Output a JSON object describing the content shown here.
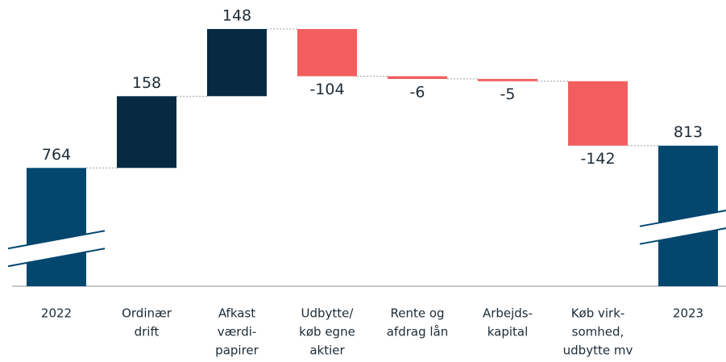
{
  "chart_data": {
    "type": "waterfall",
    "categories": [
      [
        "2022"
      ],
      [
        "Ordinær",
        "drift"
      ],
      [
        "Afkast",
        "værdi-",
        "papirer"
      ],
      [
        "Udbytte/",
        "køb egne",
        "aktier"
      ],
      [
        "Rente og",
        "afdrag lån"
      ],
      [
        "Arbejds-",
        "kapital"
      ],
      [
        "Køb virk-",
        "somhed,",
        "udbytte mv"
      ],
      [
        "2023"
      ]
    ],
    "values": [
      764,
      158,
      148,
      -104,
      -6,
      -5,
      -142,
      813
    ],
    "totals": [
      true,
      false,
      false,
      false,
      false,
      false,
      false,
      true
    ],
    "colors": {
      "total": "#03476f",
      "increase": "#052a42",
      "decrease": "#f25e5e"
    }
  }
}
